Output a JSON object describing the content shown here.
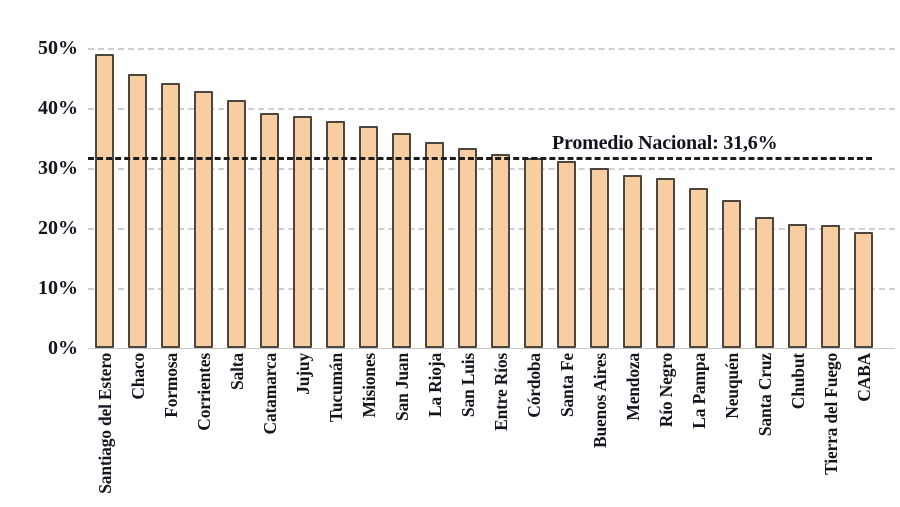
{
  "chart_data": {
    "type": "bar",
    "title": "",
    "xlabel": "",
    "ylabel": "",
    "categories": [
      "Santiago del Estero",
      "Chaco",
      "Formosa",
      "Corrientes",
      "Salta",
      "Catamarca",
      "Jujuy",
      "Tucumán",
      "Misiones",
      "San Juan",
      "La Rioja",
      "San Luis",
      "Entre Ríos",
      "Córdoba",
      "Santa Fe",
      "Buenos Aires",
      "Mendoza",
      "Río Negro",
      "La Pampa",
      "Neuquén",
      "Santa Cruz",
      "Chubut",
      "Tierra del Fuego",
      "CABA"
    ],
    "values": [
      49.0,
      45.7,
      44.2,
      42.8,
      41.3,
      39.2,
      38.7,
      37.8,
      37.0,
      35.8,
      34.4,
      33.4,
      32.4,
      31.6,
      31.2,
      30.0,
      28.9,
      28.4,
      26.6,
      24.7,
      21.8,
      20.7,
      20.5,
      19.3
    ],
    "unit": "%",
    "ylim": [
      0,
      50
    ],
    "yticks": [
      0,
      10,
      20,
      30,
      40,
      50
    ],
    "ytick_labels": [
      "0%",
      "10%",
      "20%",
      "30%",
      "40%",
      "50%"
    ],
    "grid": "horizontal-dashed",
    "legend_position": "none",
    "reference_line": {
      "label": "Promedio Nacional: 31,6%",
      "value": 31.6,
      "style": "dashed"
    },
    "colors": {
      "bar_fill": "#f7cda1",
      "bar_border": "#4d463d",
      "gridline": "#cfcfcf",
      "reference_line": "#1c1c1c",
      "text": "#15151f",
      "background": "#ffffff"
    }
  }
}
